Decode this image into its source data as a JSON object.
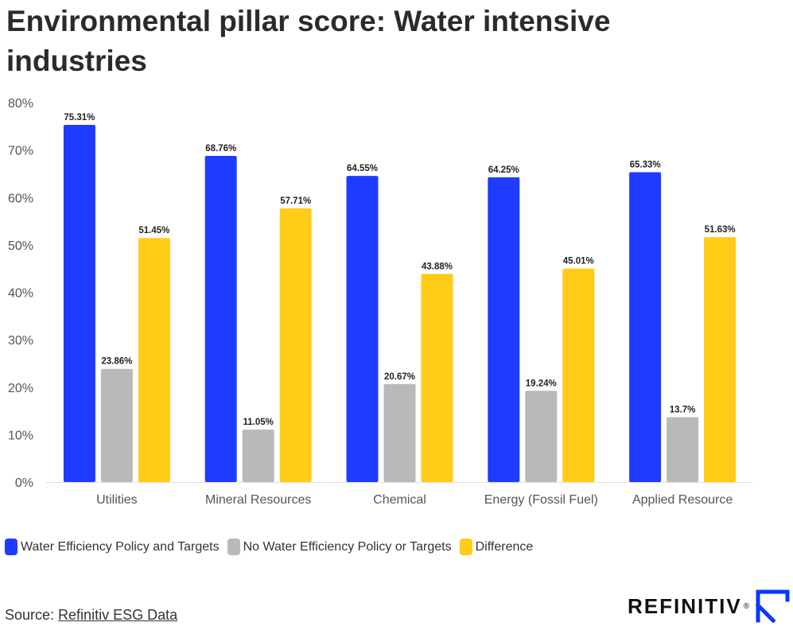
{
  "title": "Environmental pillar score: Water intensive industries",
  "chart_data": {
    "type": "bar",
    "title": "Environmental pillar score: Water intensive industries",
    "xlabel": "",
    "ylabel": "",
    "ylim": [
      0,
      80
    ],
    "yticks": [
      "0%",
      "10%",
      "20%",
      "30%",
      "40%",
      "50%",
      "60%",
      "70%",
      "80%"
    ],
    "grid": false,
    "legend_position": "bottom",
    "categories": [
      "Utilities",
      "Mineral Resources",
      "Chemical",
      "Energy (Fossil Fuel)",
      "Applied Resource"
    ],
    "series": [
      {
        "name": "Water Efficiency Policy and Targets",
        "color": "#1f3bff",
        "values": [
          75.31,
          68.76,
          64.55,
          64.25,
          65.33
        ],
        "labels": [
          "75.31%",
          "68.76%",
          "64.55%",
          "64.25%",
          "65.33%"
        ]
      },
      {
        "name": "No Water Efficiency Policy or Targets",
        "color": "#b9b9b9",
        "values": [
          23.86,
          11.05,
          20.67,
          19.24,
          13.7
        ],
        "labels": [
          "23.86%",
          "11.05%",
          "20.67%",
          "19.24%",
          "13.7%"
        ]
      },
      {
        "name": "Difference",
        "color": "#ffcc17",
        "values": [
          51.45,
          57.71,
          43.88,
          45.01,
          51.63
        ],
        "labels": [
          "51.45%",
          "57.71%",
          "43.88%",
          "45.01%",
          "51.63%"
        ]
      }
    ]
  },
  "source": {
    "prefix": "Source: ",
    "link_text": "Refinitiv ESG Data"
  },
  "logo": {
    "text": "REFINITIV",
    "reg": "®",
    "accent_color": "#0a38ff"
  }
}
